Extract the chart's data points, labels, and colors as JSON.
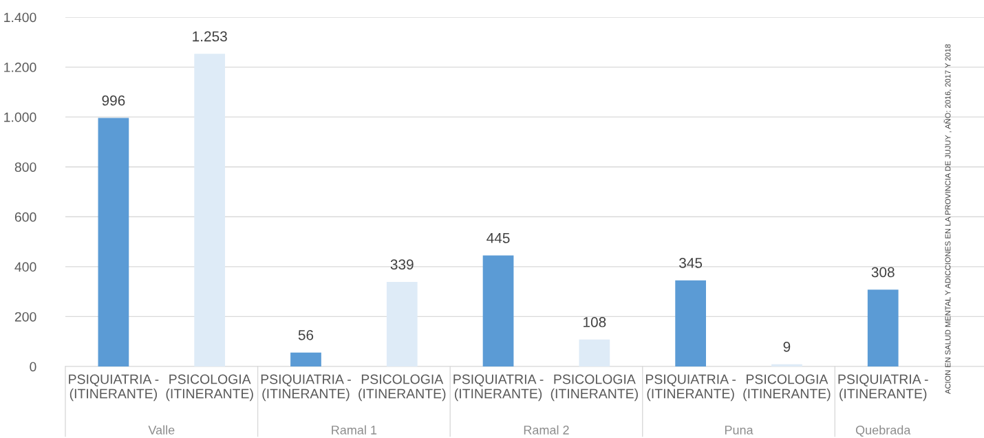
{
  "chart_data": {
    "type": "bar",
    "categories": [
      "PSIQUIATRIA -\n(ITINERANTE)",
      "PSICOLOGIA\n(ITINERANTE)",
      "PSIQUIATRIA -\n(ITINERANTE)",
      "PSICOLOGIA\n(ITINERANTE)",
      "PSIQUIATRIA -\n(ITINERANTE)",
      "PSICOLOGIA\n(ITINERANTE)",
      "PSIQUIATRIA -\n(ITINERANTE)",
      "PSICOLOGIA\n(ITINERANTE)",
      "PSIQUIATRIA -\n(ITINERANTE)"
    ],
    "values": [
      996,
      1253,
      56,
      339,
      445,
      108,
      345,
      9,
      308
    ],
    "colors": [
      "#5b9bd5",
      "#deebf7",
      "#5b9bd5",
      "#deebf7",
      "#5b9bd5",
      "#deebf7",
      "#5b9bd5",
      "#deebf7",
      "#5b9bd5"
    ],
    "value_labels": [
      "996",
      "1.253",
      "56",
      "339",
      "445",
      "108",
      "345",
      "9",
      "308"
    ],
    "ylim": [
      0,
      1400
    ],
    "yticks": [
      0,
      {
        "value": 200,
        "label": "200"
      },
      {
        "value": 400,
        "label": "400"
      },
      {
        "value": 600,
        "label": "600"
      },
      {
        "value": 800,
        "label": "800"
      },
      {
        "value": 1000,
        "label": "1.000"
      },
      {
        "value": 1200,
        "label": "1.200"
      },
      {
        "value": 1400,
        "label": "1.400"
      }
    ],
    "grid": "y",
    "legend": false,
    "annotations": [
      "Valle",
      "Ramal 1",
      "Ramal 2",
      "Puna",
      "Quebrada",
      "ACION EN SALUD MENTAL Y ADICCIONES EN LA PROVINCIA DE JUJUY , AÑO: 2016, 2017 Y 2018"
    ]
  }
}
